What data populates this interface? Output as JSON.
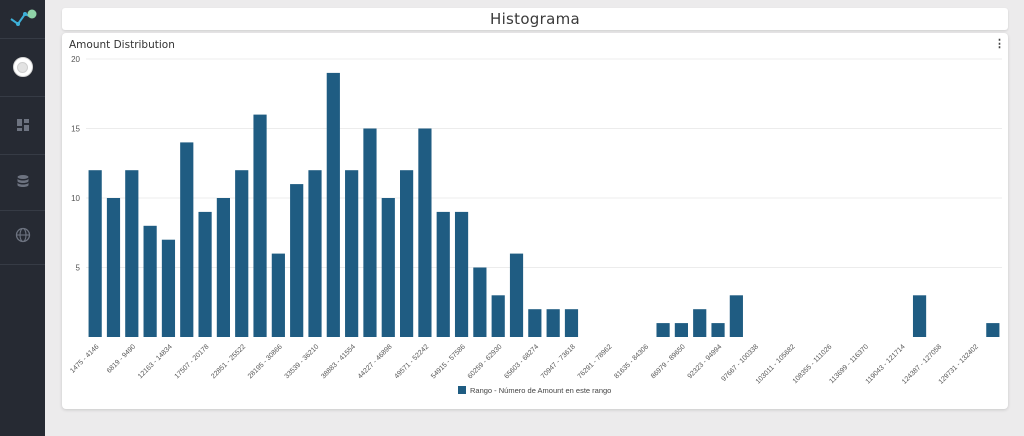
{
  "page": {
    "title": "Histograma"
  },
  "sidebar": {
    "items": [
      {
        "icon": "dashboard-icon"
      },
      {
        "icon": "database-icon"
      },
      {
        "icon": "globe-icon"
      }
    ]
  },
  "card": {
    "title": "Amount Distribution",
    "menu_icon": "more-vert-icon"
  },
  "colors": {
    "bar": "#1f5c82",
    "sidebar": "#262a33",
    "page_bg": "#ecebec"
  },
  "chart_data": {
    "type": "bar",
    "title": "Amount Distribution",
    "categories": [
      "1475 - 4146",
      "",
      "6819 - 9490",
      "",
      "12163 - 14834",
      "",
      "17507 - 20178",
      "",
      "22851 - 25522",
      "",
      "28195 - 30866",
      "",
      "33539 - 36210",
      "",
      "38883 - 41554",
      "",
      "44227 - 46898",
      "",
      "49571 - 52242",
      "",
      "54915 - 57586",
      "",
      "60259 - 62930",
      "",
      "65603 - 68274",
      "",
      "70947 - 73618",
      "",
      "76291 - 78962",
      "",
      "81635 - 84306",
      "",
      "86979 - 89650",
      "",
      "92323 - 94994",
      "",
      "97667 - 100338",
      "",
      "103011 - 105682",
      "",
      "108355 - 111026",
      "",
      "113699 - 116370",
      "",
      "119043 - 121714",
      "",
      "124387 - 127058",
      "",
      "129731 - 132402",
      ""
    ],
    "values": [
      12,
      10,
      12,
      8,
      7,
      14,
      9,
      10,
      12,
      16,
      6,
      11,
      12,
      19,
      12,
      15,
      10,
      12,
      15,
      9,
      9,
      5,
      3,
      6,
      2,
      2,
      2,
      0,
      0,
      0,
      0,
      1,
      1,
      2,
      1,
      3,
      0,
      0,
      0,
      0,
      0,
      0,
      0,
      0,
      0,
      3,
      0,
      0,
      0,
      1
    ],
    "yticks": [
      5,
      10,
      15,
      20
    ],
    "ylim": [
      0,
      20
    ],
    "legend": "Rango - Número de Amount en este rango",
    "legend_position": "bottom",
    "grid": true
  }
}
